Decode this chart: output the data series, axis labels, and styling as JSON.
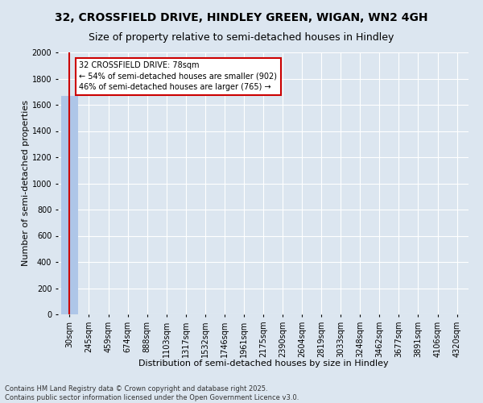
{
  "title_line1": "32, CROSSFIELD DRIVE, HINDLEY GREEN, WIGAN, WN2 4GH",
  "title_line2": "Size of property relative to semi-detached houses in Hindley",
  "xlabel": "Distribution of semi-detached houses by size in Hindley",
  "ylabel": "Number of semi-detached properties",
  "categories": [
    "30sqm",
    "245sqm",
    "459sqm",
    "674sqm",
    "888sqm",
    "1103sqm",
    "1317sqm",
    "1532sqm",
    "1746sqm",
    "1961sqm",
    "2175sqm",
    "2390sqm",
    "2604sqm",
    "2819sqm",
    "3033sqm",
    "3248sqm",
    "3462sqm",
    "3677sqm",
    "3891sqm",
    "4106sqm",
    "4320sqm"
  ],
  "values": [
    1667,
    0,
    0,
    0,
    0,
    0,
    0,
    0,
    0,
    0,
    0,
    0,
    0,
    0,
    0,
    0,
    0,
    0,
    0,
    0,
    0
  ],
  "bar_color": "#aec6e8",
  "ylim": [
    0,
    2000
  ],
  "yticks": [
    0,
    200,
    400,
    600,
    800,
    1000,
    1200,
    1400,
    1600,
    1800,
    2000
  ],
  "annotation_box_text": "32 CROSSFIELD DRIVE: 78sqm\n← 54% of semi-detached houses are smaller (902)\n46% of semi-detached houses are larger (765) →",
  "annotation_box_color": "#ffffff",
  "annotation_box_edgecolor": "#cc0000",
  "footer_text": "Contains HM Land Registry data © Crown copyright and database right 2025.\nContains public sector information licensed under the Open Government Licence v3.0.",
  "background_color": "#dce6f0",
  "plot_background_color": "#dce6f0",
  "grid_color": "#ffffff",
  "subject_line_color": "#cc0000",
  "subject_bar_index": 0,
  "title_fontsize": 10,
  "subtitle_fontsize": 9,
  "tick_fontsize": 7,
  "label_fontsize": 8,
  "annotation_fontsize": 7,
  "footer_fontsize": 6
}
